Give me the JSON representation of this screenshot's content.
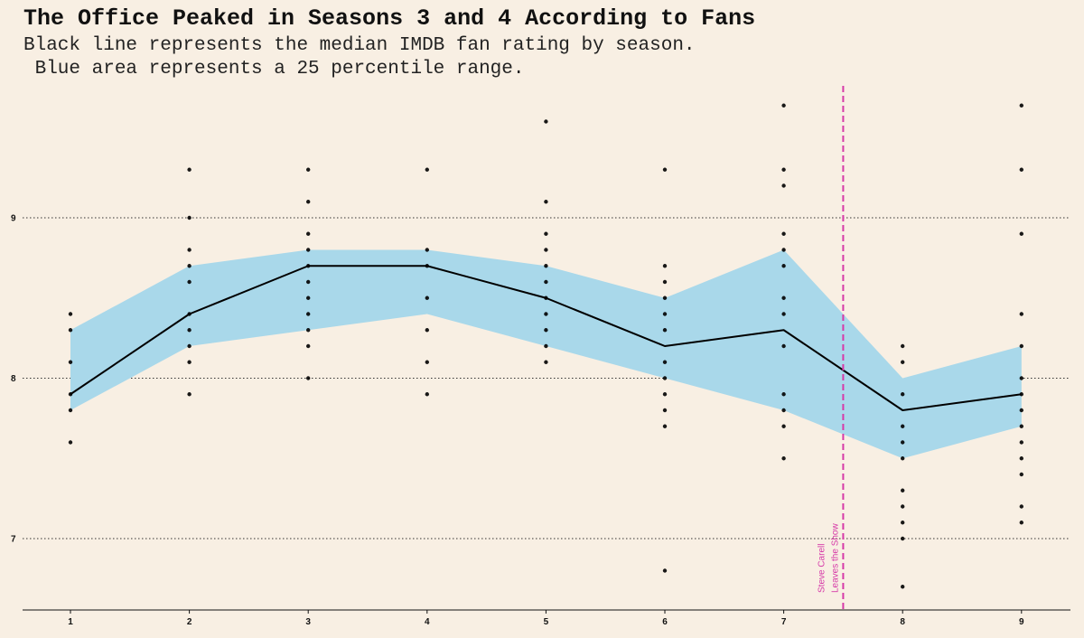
{
  "chart_data": {
    "type": "line",
    "title": "The Office Peaked in Seasons 3 and 4 According to Fans",
    "subtitle_lines": [
      "Black line represents the median IMDB fan rating by season.",
      " Blue area represents a 25 percentile range."
    ],
    "xlabel": "",
    "ylabel": "",
    "x_ticks": [
      "1",
      "2",
      "3",
      "4",
      "5",
      "6",
      "7",
      "8",
      "9"
    ],
    "y_ticks": [
      "7",
      "8",
      "9"
    ],
    "xlim": [
      0.6,
      9.4
    ],
    "ylim": [
      6.55,
      9.85
    ],
    "grid": "horizontal dotted at 7, 8, 9",
    "series": [
      {
        "kind": "median_line",
        "x": [
          1,
          2,
          3,
          4,
          5,
          6,
          7,
          8,
          9
        ],
        "values": [
          7.9,
          8.4,
          8.7,
          8.7,
          8.5,
          8.2,
          8.3,
          7.8,
          7.9
        ]
      },
      {
        "kind": "percentile_band",
        "x": [
          1,
          2,
          3,
          4,
          5,
          6,
          7,
          8,
          9
        ],
        "upper": [
          8.3,
          8.7,
          8.8,
          8.8,
          8.7,
          8.5,
          8.8,
          8.0,
          8.2
        ],
        "lower": [
          7.8,
          8.2,
          8.3,
          8.4,
          8.2,
          8.0,
          7.8,
          7.5,
          7.7
        ]
      },
      {
        "kind": "episode_points",
        "points": [
          {
            "season": 1,
            "ratings": [
              8.4,
              8.3,
              8.1,
              7.9,
              7.8,
              7.6
            ]
          },
          {
            "season": 2,
            "ratings": [
              9.3,
              9.0,
              8.8,
              8.7,
              8.6,
              8.4,
              8.3,
              8.2,
              8.1,
              7.9
            ]
          },
          {
            "season": 3,
            "ratings": [
              9.3,
              9.1,
              8.9,
              8.8,
              8.7,
              8.6,
              8.5,
              8.4,
              8.3,
              8.2,
              8.0
            ]
          },
          {
            "season": 4,
            "ratings": [
              9.3,
              8.8,
              8.7,
              8.5,
              8.3,
              8.1,
              7.9
            ]
          },
          {
            "season": 5,
            "ratings": [
              9.6,
              9.1,
              8.9,
              8.8,
              8.7,
              8.6,
              8.5,
              8.4,
              8.3,
              8.2,
              8.1
            ]
          },
          {
            "season": 6,
            "ratings": [
              9.3,
              8.7,
              8.6,
              8.5,
              8.4,
              8.3,
              8.1,
              8.0,
              7.9,
              7.8,
              7.7,
              6.8
            ]
          },
          {
            "season": 7,
            "ratings": [
              9.7,
              9.3,
              9.2,
              8.9,
              8.8,
              8.7,
              8.5,
              8.4,
              8.2,
              7.9,
              7.8,
              7.7,
              7.5
            ]
          },
          {
            "season": 8,
            "ratings": [
              8.2,
              8.1,
              7.9,
              7.7,
              7.6,
              7.5,
              7.3,
              7.2,
              7.1,
              7.0,
              6.7
            ]
          },
          {
            "season": 9,
            "ratings": [
              9.7,
              9.3,
              8.9,
              8.4,
              8.2,
              8.0,
              7.9,
              7.8,
              7.7,
              7.6,
              7.5,
              7.4,
              7.2,
              7.1
            ]
          }
        ]
      }
    ],
    "annotation": {
      "x": 7.5,
      "lines": [
        "Steve Carell",
        "Leaves the Show"
      ],
      "color": "#d63aa8"
    },
    "colors": {
      "background": "#f8efe3",
      "band": "#a9d8ea",
      "median": "#000000",
      "points": "#000000",
      "grid": "#333333",
      "annotation": "#d63aa8"
    }
  }
}
